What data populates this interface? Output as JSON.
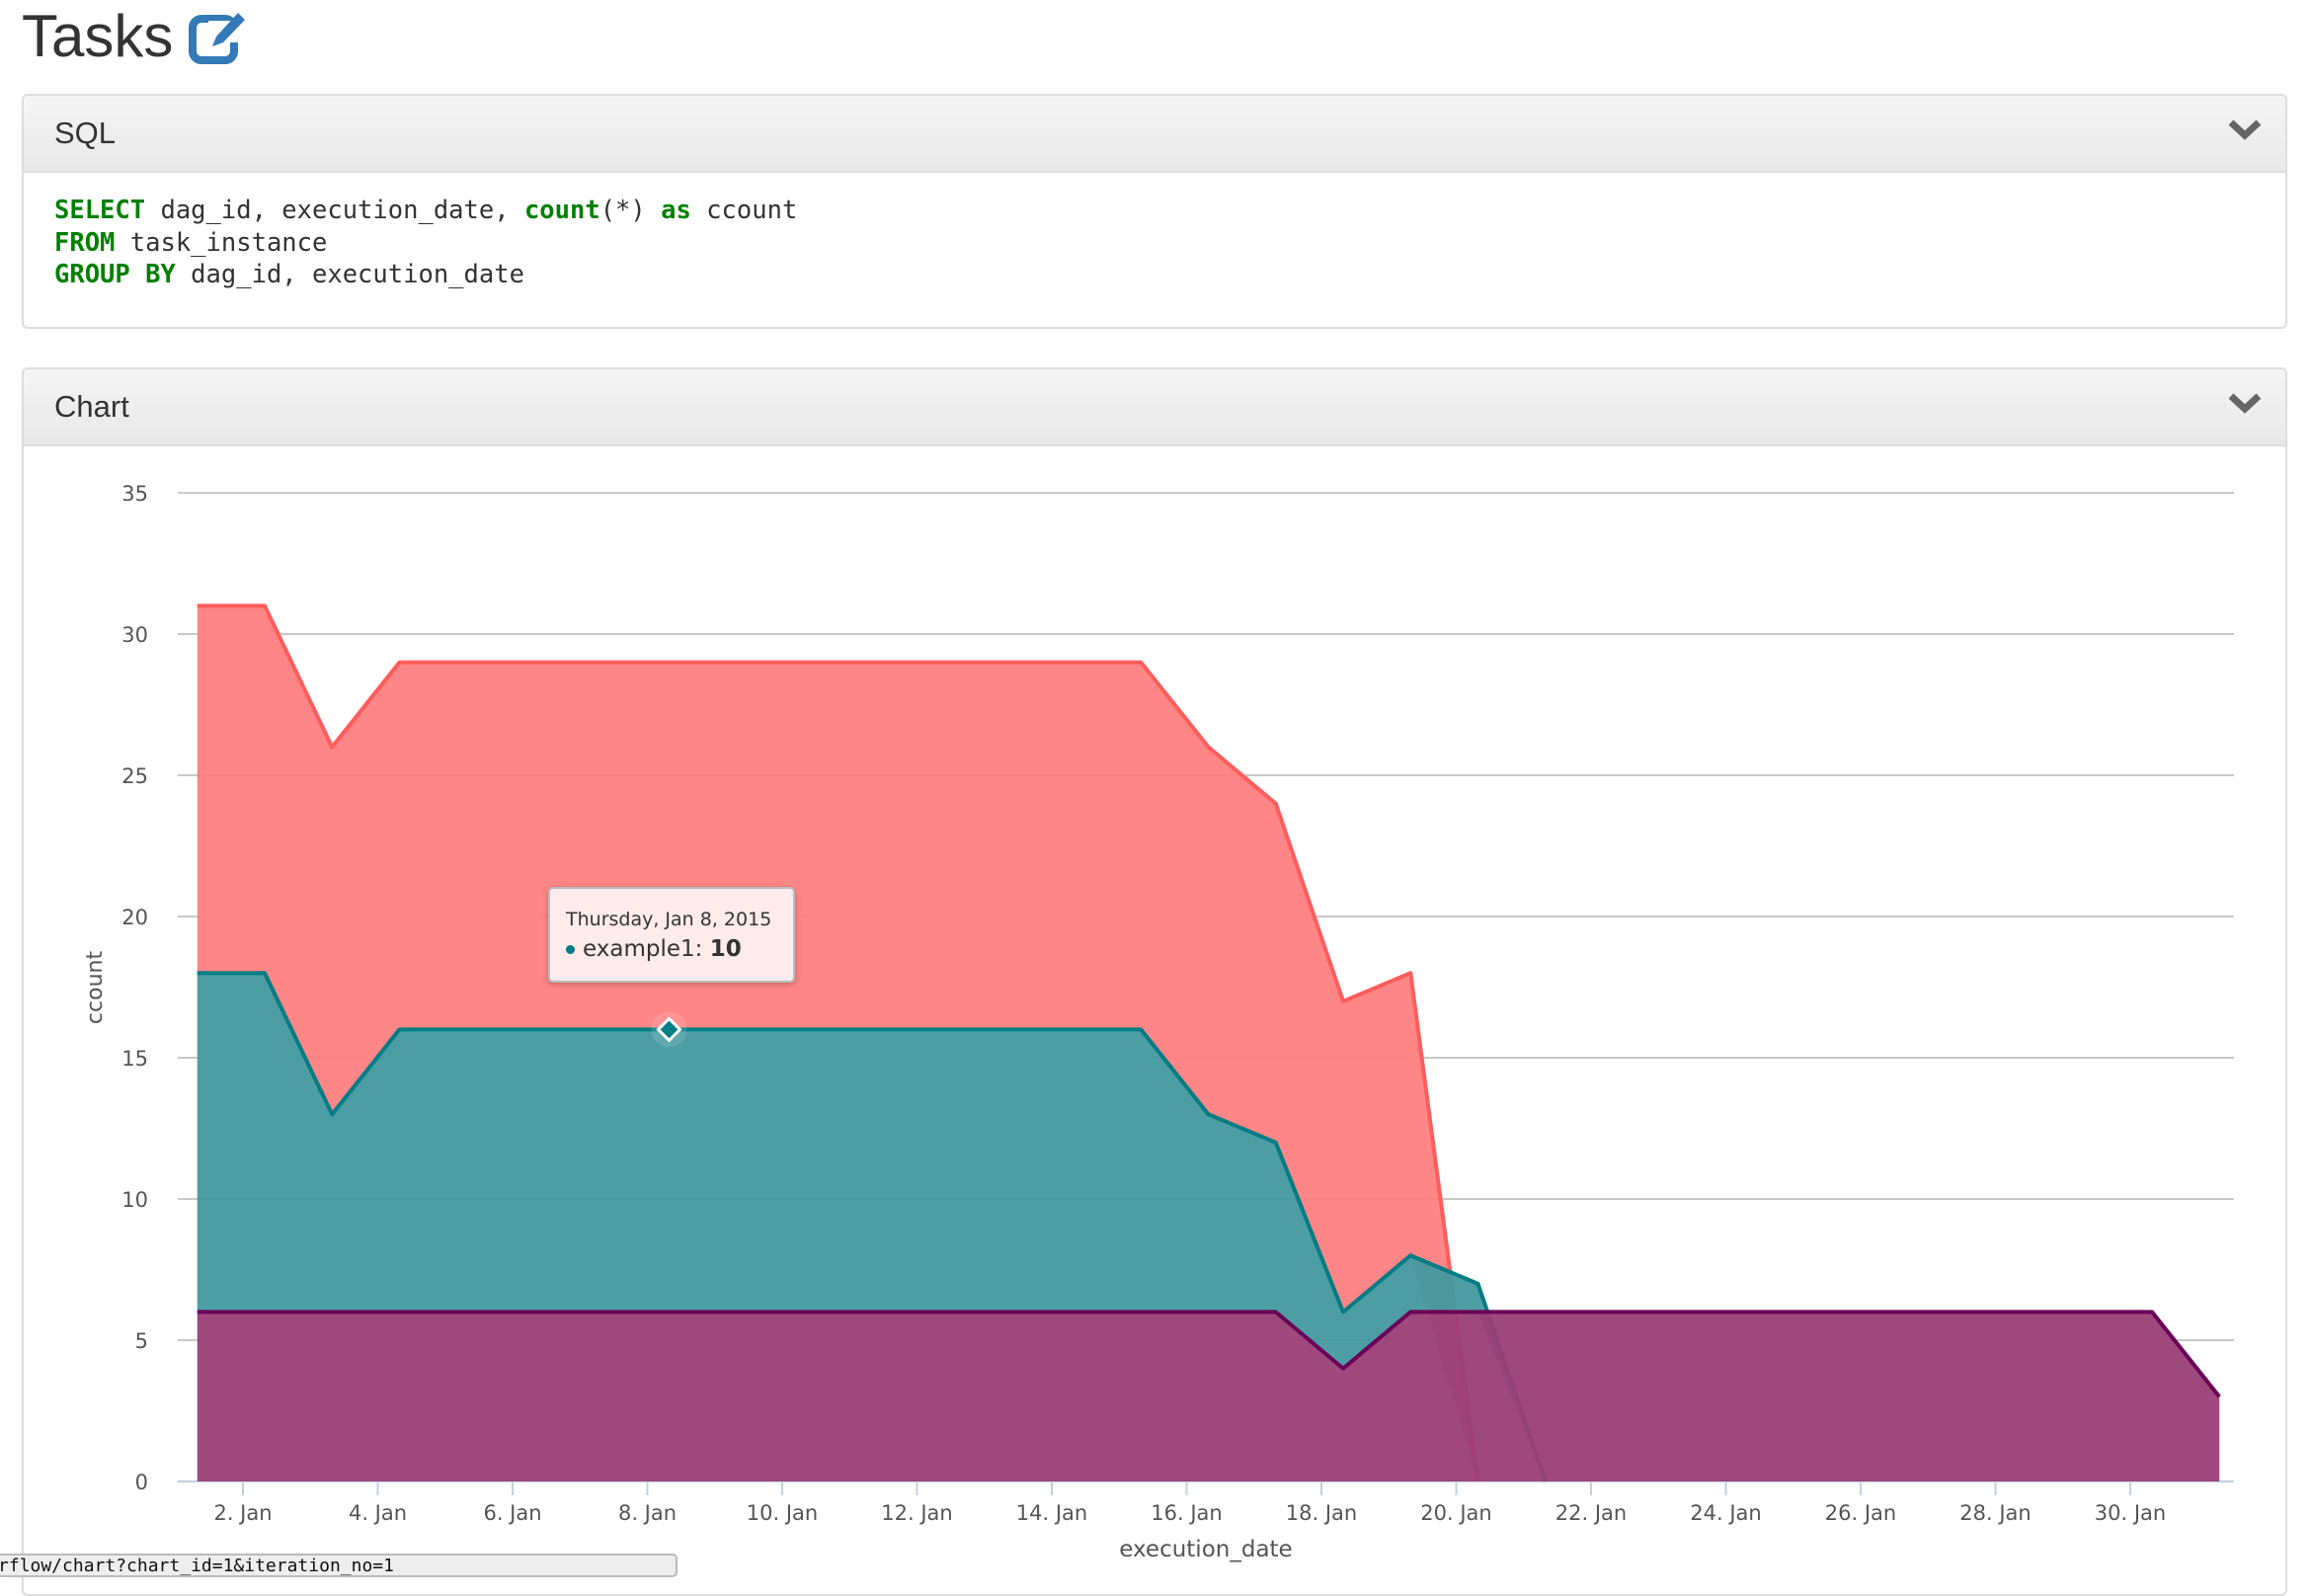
{
  "page": {
    "title": "Tasks",
    "edit_icon": "edit-icon",
    "accent_color": "#337ab7"
  },
  "sql_panel": {
    "title": "SQL",
    "lines": [
      [
        {
          "t": "SELECT",
          "kw": true
        },
        {
          "t": " dag_id, execution_date, "
        },
        {
          "t": "count",
          "kw": true
        },
        {
          "t": "(*) "
        },
        {
          "t": "as",
          "kw": true
        },
        {
          "t": " ccount"
        }
      ],
      [
        {
          "t": "FROM",
          "kw": true
        },
        {
          "t": " task_instance"
        }
      ],
      [
        {
          "t": "GROUP BY",
          "kw": true
        },
        {
          "t": " dag_id, execution_date"
        }
      ]
    ]
  },
  "chart_panel": {
    "title": "Chart"
  },
  "chart_data": {
    "type": "area",
    "stacked": true,
    "xlabel": "execution_date",
    "ylabel": "ccount",
    "ylim": [
      0,
      35
    ],
    "yticks": [
      "0",
      "5",
      "10",
      "15",
      "20",
      "25",
      "30",
      "35"
    ],
    "xticks": [
      "2. Jan",
      "4. Jan",
      "6. Jan",
      "8. Jan",
      "10. Jan",
      "12. Jan",
      "14. Jan",
      "16. Jan",
      "18. Jan",
      "20. Jan",
      "22. Jan",
      "24. Jan",
      "26. Jan",
      "28. Jan",
      "30. Jan"
    ],
    "grid": true,
    "x_dates": [
      "2015-01-01",
      "2015-01-02",
      "2015-01-03",
      "2015-01-04",
      "2015-01-05",
      "2015-01-06",
      "2015-01-07",
      "2015-01-08",
      "2015-01-09",
      "2015-01-10",
      "2015-01-11",
      "2015-01-12",
      "2015-01-13",
      "2015-01-14",
      "2015-01-15",
      "2015-01-16",
      "2015-01-17",
      "2015-01-18",
      "2015-01-19",
      "2015-01-20",
      "2015-01-21",
      "2015-01-22",
      "2015-01-23",
      "2015-01-24",
      "2015-01-25",
      "2015-01-26",
      "2015-01-27",
      "2015-01-28",
      "2015-01-29",
      "2015-01-30",
      "2015-01-31"
    ],
    "series": [
      {
        "line_color": "#6b0057",
        "fill_color": "#9a3e77",
        "values": [
          6,
          6,
          6,
          6,
          6,
          6,
          6,
          6,
          6,
          6,
          6,
          6,
          6,
          6,
          6,
          6,
          6,
          4,
          6,
          6,
          6,
          6,
          6,
          6,
          6,
          6,
          6,
          6,
          6,
          6,
          3
        ]
      },
      {
        "name": "example1",
        "line_color": "#007c84",
        "fill_color": "#42999f",
        "values": [
          12,
          12,
          7,
          10,
          10,
          10,
          10,
          10,
          10,
          10,
          10,
          10,
          10,
          10,
          10,
          7,
          6,
          2,
          2,
          1,
          null
        ]
      },
      {
        "line_color": "#ff5c5c",
        "fill_color": "#ff8080",
        "values": [
          13,
          13,
          13,
          13,
          13,
          13,
          13,
          13,
          13,
          13,
          13,
          13,
          13,
          13,
          13,
          13,
          12,
          11,
          10,
          null
        ]
      }
    ],
    "tooltip": {
      "date": "Thursday, Jan 8, 2015",
      "series": "example1",
      "label": "example1:",
      "value": "10"
    }
  },
  "status_bar": {
    "url": "rflow/chart?chart_id=1&iteration_no=1"
  }
}
